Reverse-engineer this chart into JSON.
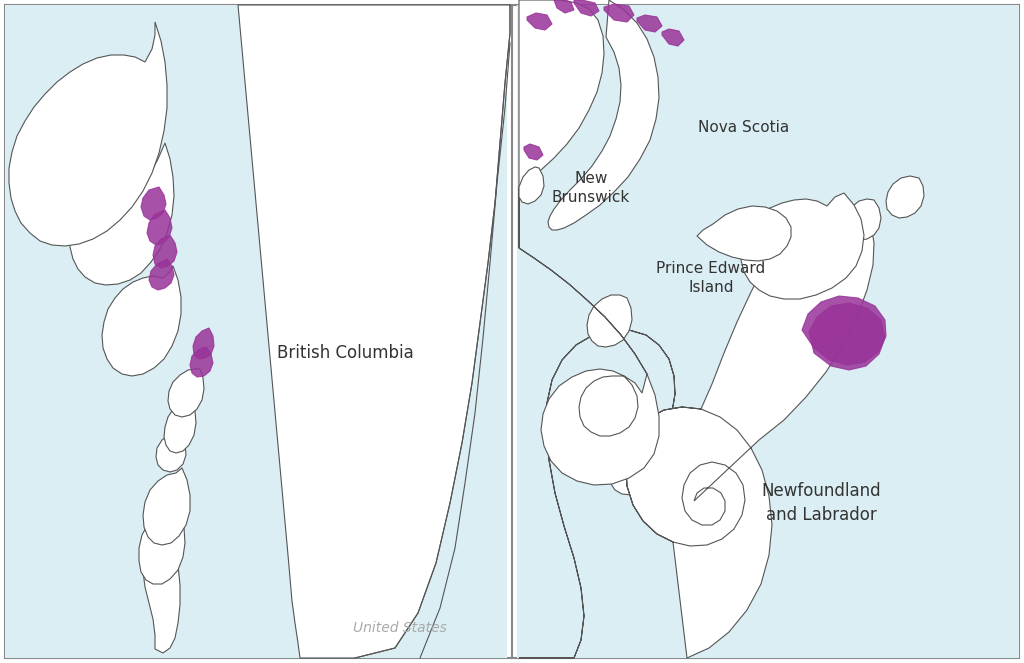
{
  "ocean_color": "#daeef3",
  "land_color": "#ffffff",
  "line_color": "#555555",
  "line_width": 0.8,
  "salmon_color": "#993399",
  "salmon_alpha": 0.85,
  "frame_color": "#888888",
  "bc_label": "British Columbia",
  "us_label": "United States",
  "nfl_label": "Newfoundland\nand Labrador",
  "nb_label": "New\nBrunswick",
  "ns_label": "Nova Scotia",
  "pei_label": "Prince Edward\nIsland"
}
